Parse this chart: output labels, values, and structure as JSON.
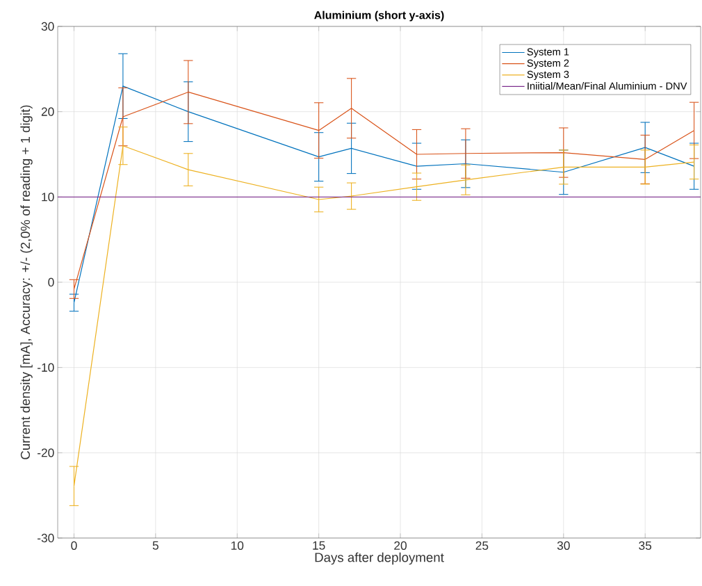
{
  "chart_data": {
    "type": "line",
    "title": "Aluminium (short y-axis)",
    "xlabel": "Days after deployment",
    "ylabel": "Current density [mA], Accuracy: +/- (2,0% of reading + 1 digit)",
    "x": [
      0,
      3,
      7,
      15,
      17,
      21,
      24,
      30,
      35,
      38
    ],
    "series": [
      {
        "name": "System 1",
        "color": "#0072bd",
        "values": [
          -2.4,
          23.0,
          20.0,
          14.7,
          15.7,
          13.6,
          13.9,
          12.9,
          15.8,
          13.6
        ],
        "errors": [
          1.0,
          3.8,
          3.5,
          2.85,
          2.95,
          2.7,
          2.8,
          2.6,
          2.95,
          2.7
        ]
      },
      {
        "name": "System 2",
        "color": "#d95319",
        "values": [
          -0.8,
          19.4,
          22.3,
          17.8,
          20.4,
          15.0,
          15.1,
          15.2,
          14.4,
          17.8
        ],
        "errors": [
          1.1,
          3.4,
          3.7,
          3.25,
          3.5,
          2.9,
          2.9,
          2.9,
          2.85,
          3.3
        ]
      },
      {
        "name": "System 3",
        "color": "#edb120",
        "values": [
          -23.9,
          16.0,
          13.2,
          9.7,
          10.1,
          11.2,
          12.0,
          13.5,
          13.5,
          14.1
        ],
        "errors": [
          2.3,
          2.2,
          1.9,
          1.45,
          1.55,
          1.6,
          1.75,
          2.0,
          2.0,
          2.0
        ]
      }
    ],
    "ref_lines": [
      {
        "axis": "y",
        "value": 10,
        "label": "Iniitial/Mean/Final Aluminium - DNV",
        "color": "#7e2f8e"
      }
    ],
    "xlim": [
      -1,
      38.4
    ],
    "ylim": [
      -30,
      30
    ],
    "xticks": [
      0,
      5,
      10,
      15,
      20,
      25,
      30,
      35
    ],
    "yticks": [
      -30,
      -20,
      -10,
      0,
      10,
      20,
      30
    ],
    "grid": true,
    "legend": "top right",
    "marker": "none",
    "line_style": "solid"
  }
}
